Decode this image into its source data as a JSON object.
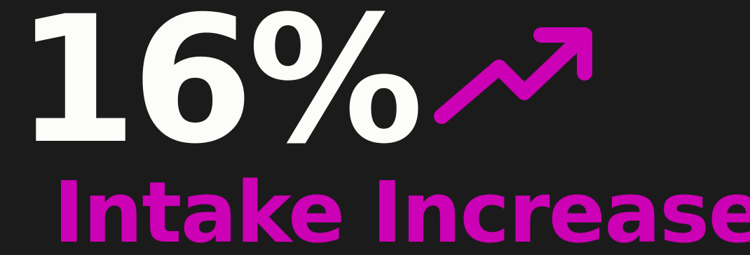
{
  "stat": {
    "value": "16%",
    "label": "Intake Increase"
  },
  "icons": {
    "trend": "trending-up-icon"
  },
  "colors": {
    "background": "#1b1b1b",
    "value": "#fcfcf9",
    "accent": "#cc00b4"
  }
}
